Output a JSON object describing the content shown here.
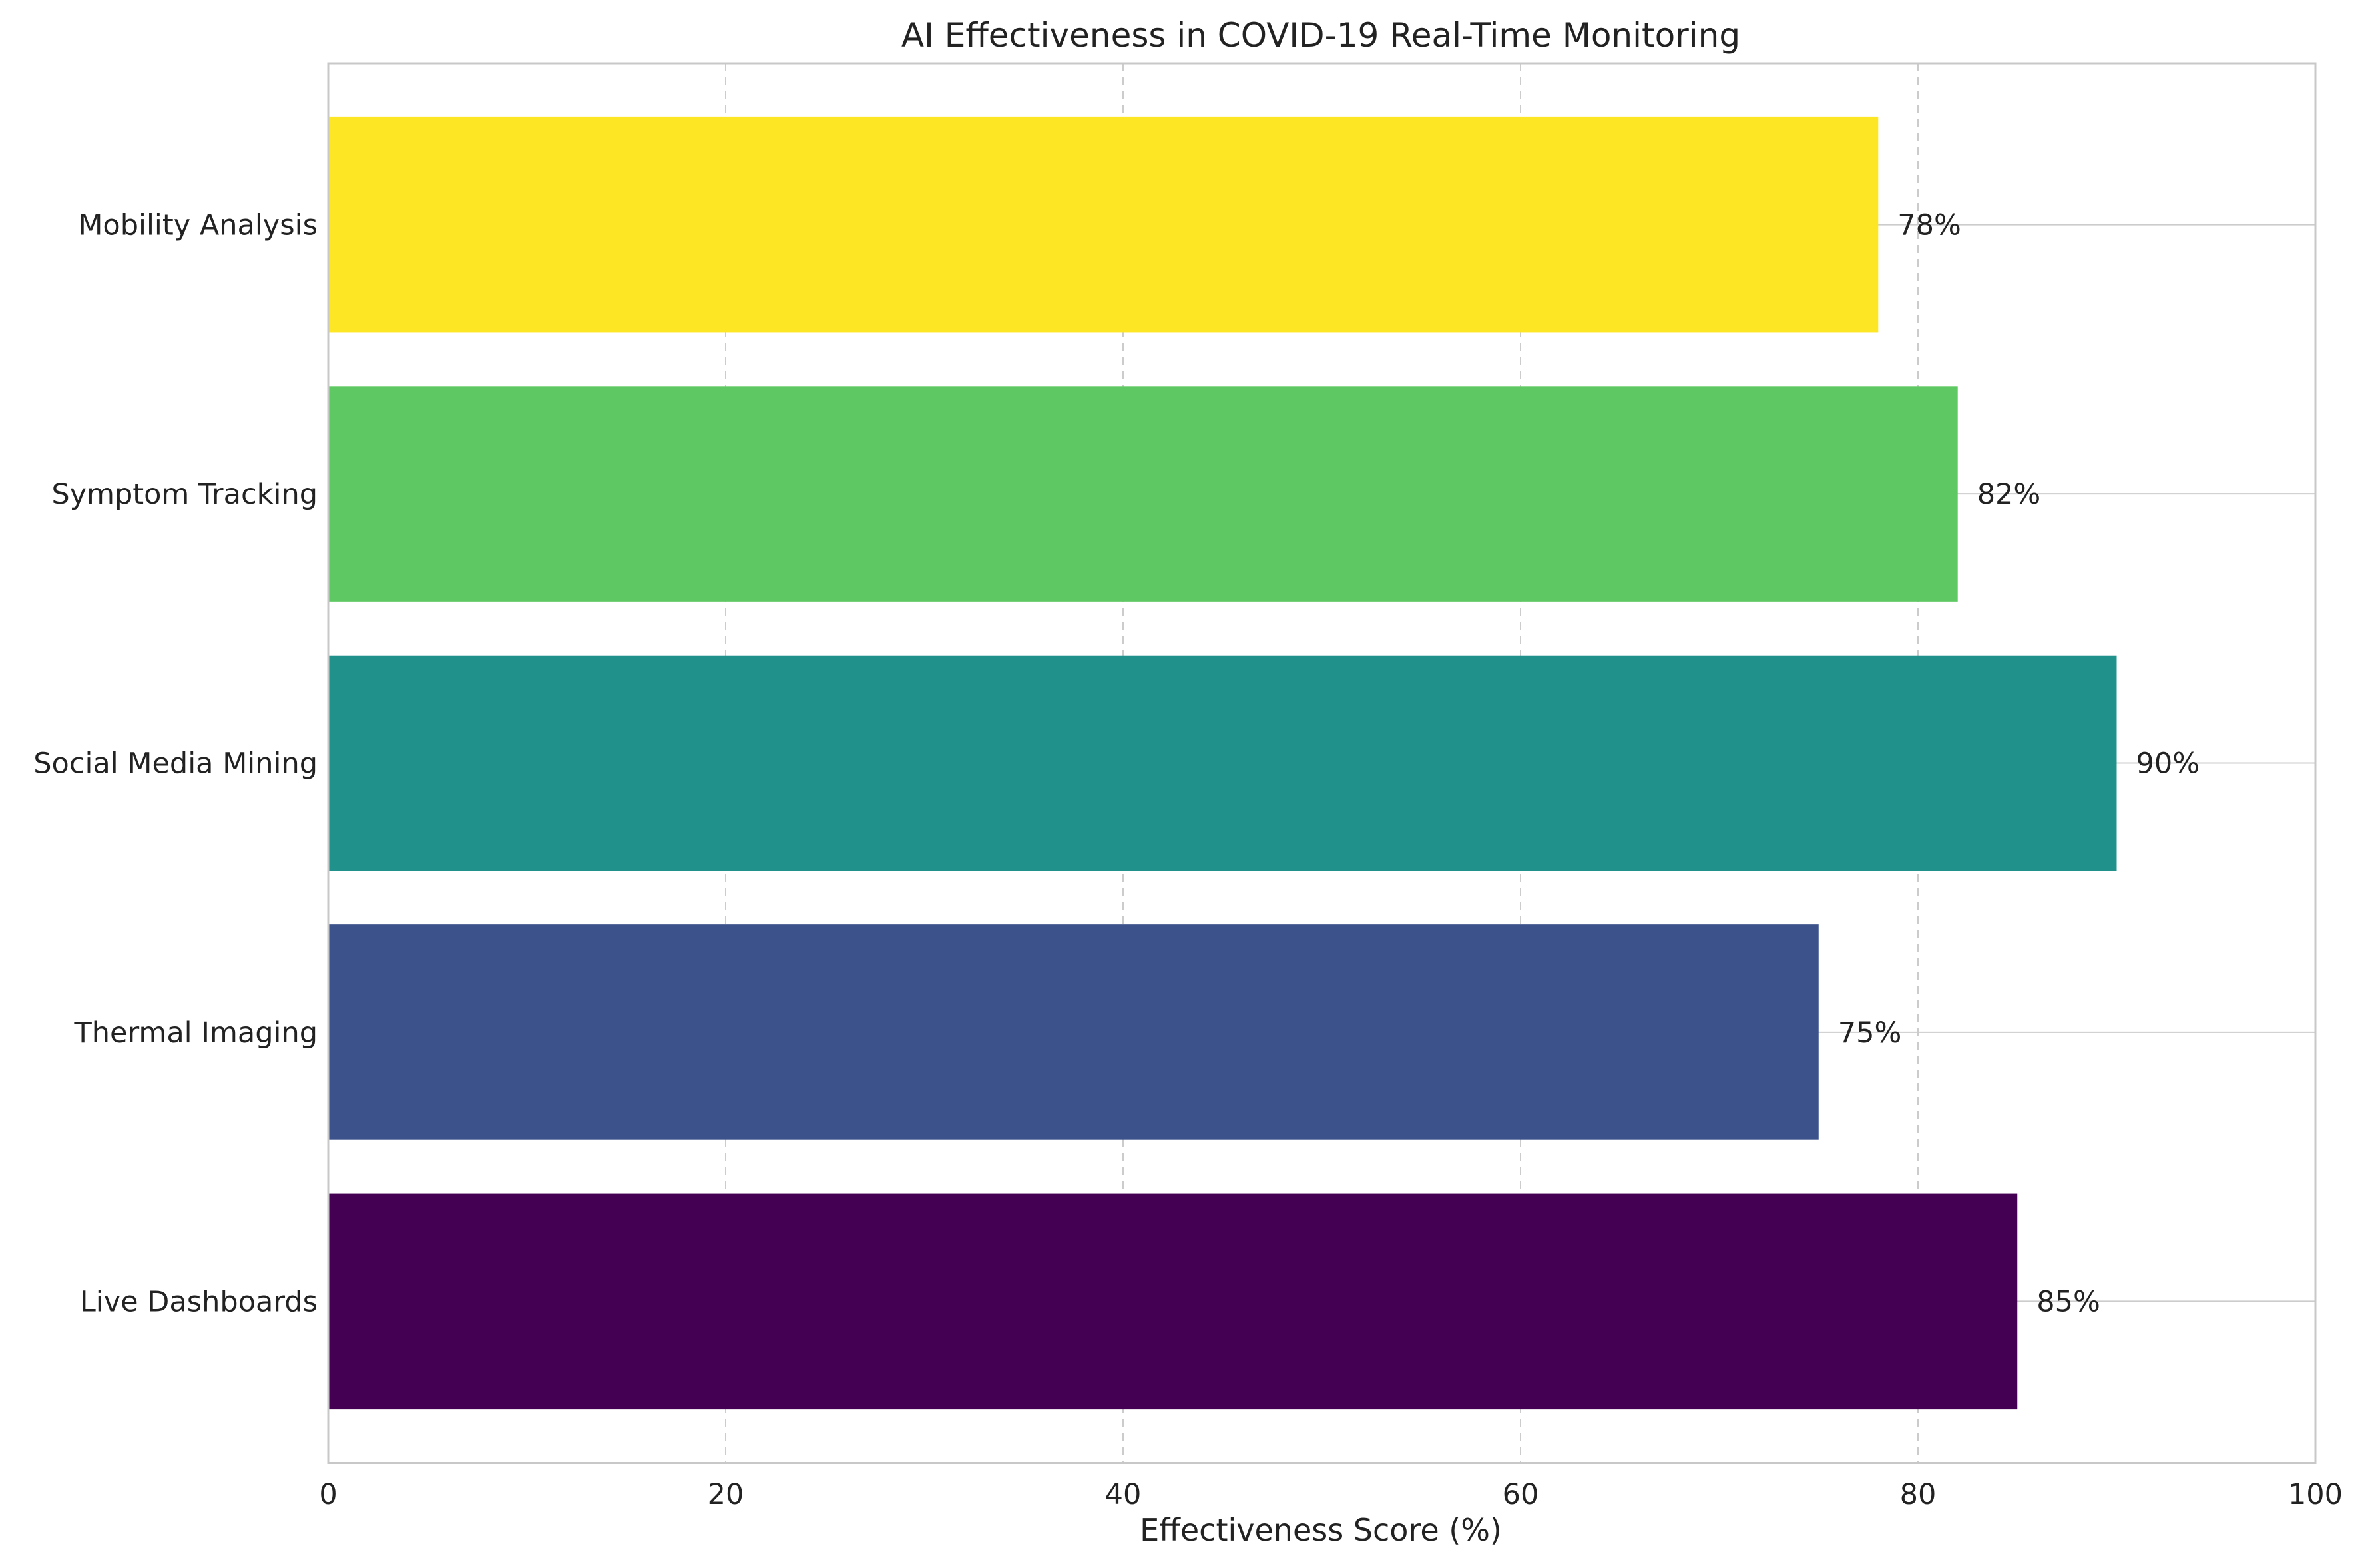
{
  "chart_data": {
    "type": "bar",
    "orientation": "horizontal",
    "title": "AI Effectiveness in COVID-19 Real-Time Monitoring",
    "xlabel": "Effectiveness Score (%)",
    "ylabel": "",
    "xlim": [
      0,
      100
    ],
    "xticks": [
      0,
      20,
      40,
      60,
      80,
      100
    ],
    "categories": [
      "Live Dashboards",
      "Thermal Imaging",
      "Social Media Mining",
      "Symptom Tracking",
      "Mobility Analysis"
    ],
    "values": [
      85,
      75,
      90,
      82,
      78
    ],
    "value_labels": [
      "85%",
      "75%",
      "90%",
      "82%",
      "78%"
    ],
    "colors": [
      "#440154",
      "#3b528b",
      "#21918c",
      "#5ec962",
      "#fde725"
    ],
    "grid": true,
    "legend": "none"
  }
}
